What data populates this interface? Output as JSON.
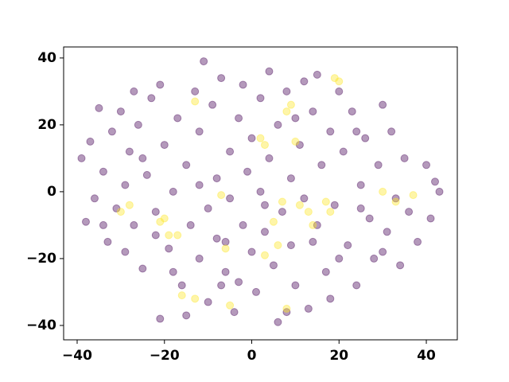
{
  "chart_data": {
    "type": "scatter",
    "alpha": 0.4,
    "series": [
      {
        "color": "#440154",
        "x": [
          -39,
          -37,
          -36,
          -35,
          -34,
          -33,
          -32,
          -31,
          -30,
          -29,
          -29,
          -28,
          -27,
          -26,
          -25,
          -24,
          -23,
          -22,
          -21,
          -21,
          -20,
          -19,
          -18,
          -17,
          -16,
          -15,
          -14,
          -13,
          -12,
          -12,
          -11,
          -10,
          -10,
          -9,
          -8,
          -8,
          -7,
          -6,
          -5,
          -5,
          -4,
          -3,
          -2,
          -2,
          -1,
          0,
          0,
          1,
          2,
          2,
          3,
          4,
          4,
          5,
          6,
          6,
          7,
          8,
          9,
          9,
          10,
          11,
          12,
          12,
          13,
          14,
          15,
          16,
          17,
          18,
          18,
          19,
          20,
          21,
          22,
          23,
          24,
          25,
          26,
          27,
          28,
          29,
          30,
          31,
          32,
          33,
          34,
          35,
          36,
          38,
          40,
          41,
          42,
          43,
          -38,
          -34,
          -25,
          -15,
          -3,
          8,
          14,
          25,
          3,
          -6,
          -18,
          -27,
          15,
          20,
          30,
          -12,
          -7,
          24,
          10,
          -22
        ],
        "values": [
          10,
          15,
          -2,
          25,
          6,
          -15,
          18,
          -5,
          24,
          2,
          -18,
          12,
          -10,
          20,
          -23,
          5,
          28,
          -6,
          -38,
          32,
          14,
          -17,
          0,
          22,
          -28,
          8,
          -10,
          30,
          -20,
          18,
          39,
          -5,
          -33,
          26,
          4,
          -14,
          34,
          -24,
          12,
          -2,
          -36,
          22,
          -10,
          32,
          6,
          -18,
          16,
          -30,
          0,
          28,
          -12,
          36,
          10,
          -22,
          -39,
          20,
          -6,
          30,
          -16,
          4,
          -28,
          14,
          -2,
          33,
          -35,
          24,
          -10,
          8,
          -24,
          18,
          -32,
          -4,
          30,
          12,
          -16,
          24,
          -28,
          2,
          16,
          -8,
          -20,
          8,
          26,
          -12,
          18,
          -2,
          -22,
          10,
          -6,
          -15,
          8,
          -8,
          3,
          0,
          -9,
          -10,
          10,
          -37,
          -27,
          -36,
          -15,
          -5,
          -4,
          -15,
          -24,
          30,
          35,
          -20,
          -18,
          2,
          -28,
          18,
          22,
          -13
        ]
      },
      {
        "color": "#fde725",
        "x": [
          -30,
          -28,
          -21,
          -20,
          -19,
          -17,
          -13,
          -16,
          -13,
          -7,
          -5,
          2,
          3,
          5,
          6,
          7,
          8,
          9,
          10,
          11,
          13,
          14,
          17,
          18,
          19,
          20,
          30,
          33,
          37,
          -6,
          8,
          3
        ],
        "values": [
          -6,
          -4,
          -9,
          -8,
          -13,
          -13,
          27,
          -31,
          -32,
          -1,
          -34,
          16,
          14,
          -9,
          -16,
          -3,
          24,
          26,
          15,
          -4,
          -6,
          -10,
          -3,
          -6,
          34,
          33,
          0,
          -3,
          -1,
          -17,
          -35,
          -19
        ]
      }
    ],
    "xlim": [
      -43.1,
      47.1
    ],
    "ylim": [
      -44.3,
      43.3
    ],
    "xticks": [
      {
        "value": -40,
        "label": "−40"
      },
      {
        "value": -20,
        "label": "−20"
      },
      0,
      20,
      40
    ],
    "yticks": [
      {
        "value": -40,
        "label": "−40"
      },
      {
        "value": -20,
        "label": "−20"
      },
      0,
      20,
      40
    ]
  }
}
